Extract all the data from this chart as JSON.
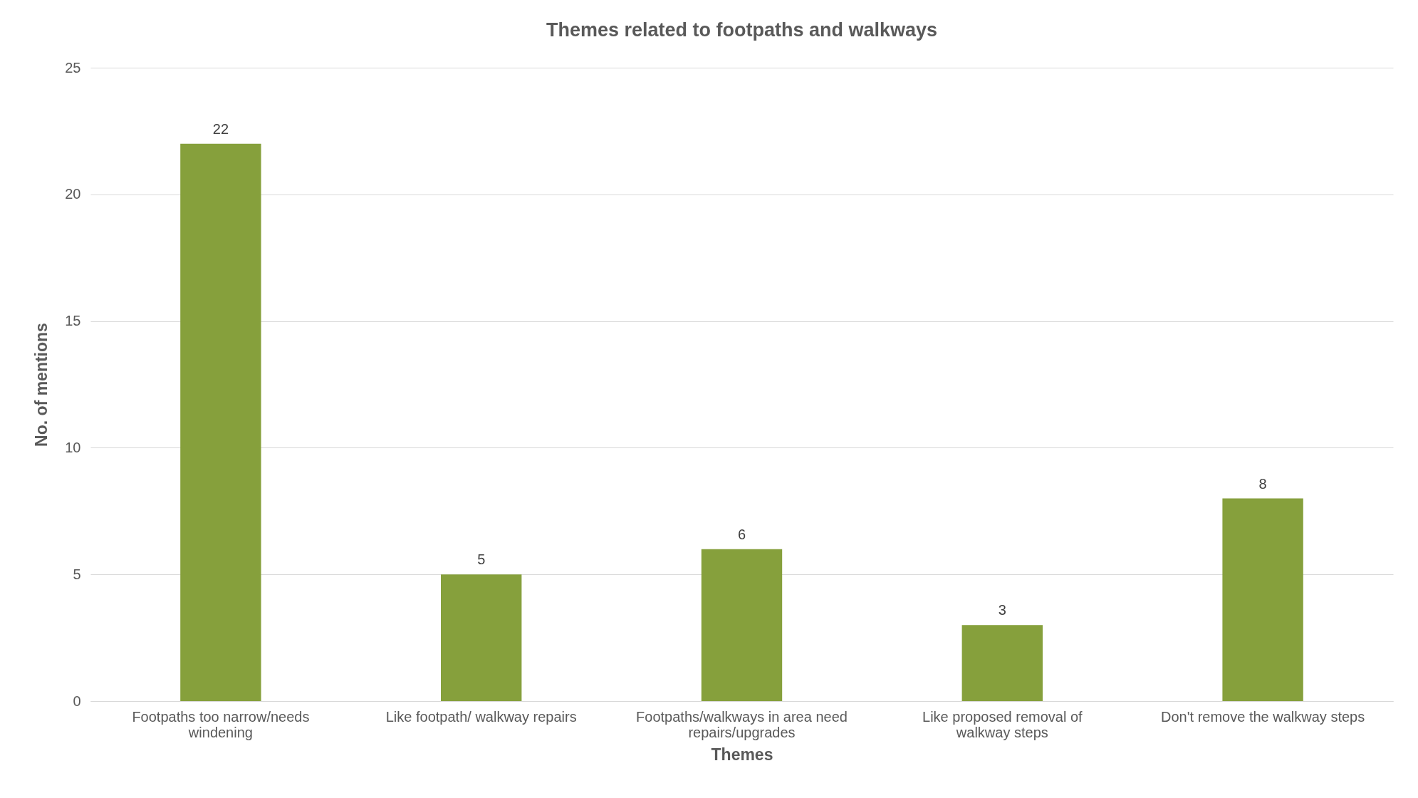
{
  "chart_data": {
    "type": "bar",
    "title": "Themes related to footpaths and walkways",
    "xlabel": "Themes",
    "ylabel": "No. of mentions",
    "categories": [
      "Footpaths too narrow/needs windening",
      "Like footpath/ walkway repairs",
      "Footpaths/walkways in area need repairs/upgrades",
      "Like proposed removal of walkway steps",
      "Don't remove the walkway steps"
    ],
    "values": [
      22,
      5,
      6,
      3,
      8
    ],
    "color": "#86a03c",
    "ylim": [
      0,
      25
    ],
    "yticks": [
      0,
      5,
      10,
      15,
      20,
      25
    ],
    "grid": "y",
    "data_labels": true
  }
}
